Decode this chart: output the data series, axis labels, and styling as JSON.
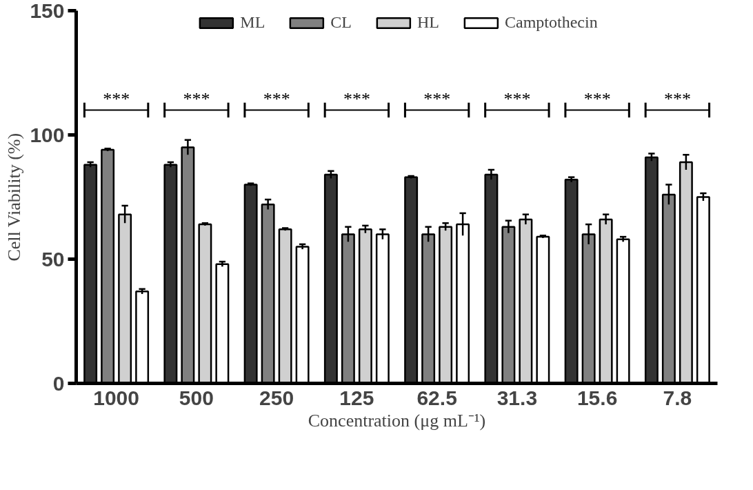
{
  "chart_data": {
    "type": "bar",
    "xlabel": "Concentration (μg mL⁻¹)",
    "ylabel": "Cell Viability (%)",
    "categories": [
      "1000",
      "500",
      "250",
      "125",
      "62.5",
      "31.3",
      "15.6",
      "7.8"
    ],
    "series": [
      {
        "name": "ML",
        "color": "#333333",
        "values": [
          88,
          88,
          80,
          84,
          83,
          84,
          82,
          91
        ],
        "errors": [
          1,
          1,
          0.5,
          1.5,
          0.5,
          2,
          1,
          1.5
        ]
      },
      {
        "name": "CL",
        "color": "#808080",
        "values": [
          94,
          95,
          72,
          60,
          60,
          63,
          60,
          76
        ],
        "errors": [
          0.5,
          3,
          2,
          3,
          3,
          2.5,
          4,
          4
        ]
      },
      {
        "name": "HL",
        "color": "#d0d0d0",
        "values": [
          68,
          64,
          62,
          62,
          63,
          66,
          66,
          89
        ],
        "errors": [
          3.5,
          0.5,
          0.5,
          1.5,
          1.5,
          2,
          2,
          3
        ]
      },
      {
        "name": "Camptothecin",
        "color": "#ffffff",
        "values": [
          37,
          48,
          55,
          60,
          64,
          59,
          58,
          75
        ],
        "errors": [
          1,
          1,
          1,
          2,
          4.5,
          0.5,
          1,
          1.5
        ]
      }
    ],
    "ylim": [
      0,
      150
    ],
    "yticks": [
      0,
      50,
      100,
      150
    ],
    "grid": false,
    "legend": "top",
    "annotations": [
      "***",
      "***",
      "***",
      "***",
      "***",
      "***",
      "***",
      "***"
    ]
  }
}
